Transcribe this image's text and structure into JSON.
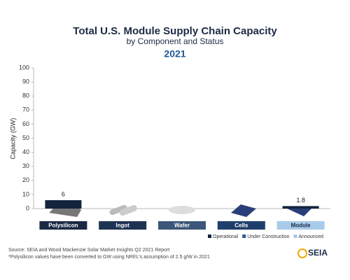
{
  "chart_data": {
    "type": "bar",
    "stacked": true,
    "title": "Total U.S. Module Supply Chain Capacity",
    "subtitle": "by Component and Status",
    "year": "2021",
    "y_label": "Capacity (GW)",
    "categories": [
      "Polysilicon",
      "Ingot",
      "Wafer",
      "Cells",
      "Module"
    ],
    "category_colors": [
      "#1b2a44",
      "#1e3354",
      "#3b5678",
      "#1f3e6c",
      "#a8cbe9"
    ],
    "category_text_colors": [
      "#ffffff",
      "#ffffff",
      "#ffffff",
      "#ffffff",
      "#1b2a44"
    ],
    "series": [
      {
        "name": "Operational",
        "color": "#14243d",
        "values": [
          6,
          0,
          0,
          0,
          1.8
        ]
      },
      {
        "name": "Under Construction",
        "color": "#2b5d94",
        "values": [
          0,
          0,
          0,
          0,
          0
        ]
      },
      {
        "name": "Announced",
        "color": "#a8cbe9",
        "values": [
          0,
          0,
          0,
          0,
          0
        ]
      }
    ],
    "ylim": [
      0,
      100
    ],
    "yticks": [
      0,
      10,
      20,
      30,
      40,
      50,
      60,
      70,
      80,
      90,
      100
    ],
    "grid": false,
    "legend": "bottom-right",
    "notes": [
      "Source: SEIA and Wood Mackenzie Solar Market Insights Q2 2021 Report",
      "*Polysilicon values have been converted to GW using NREL's assumption of 2.5 g/W in 2021"
    ],
    "logo": "SEIA"
  }
}
